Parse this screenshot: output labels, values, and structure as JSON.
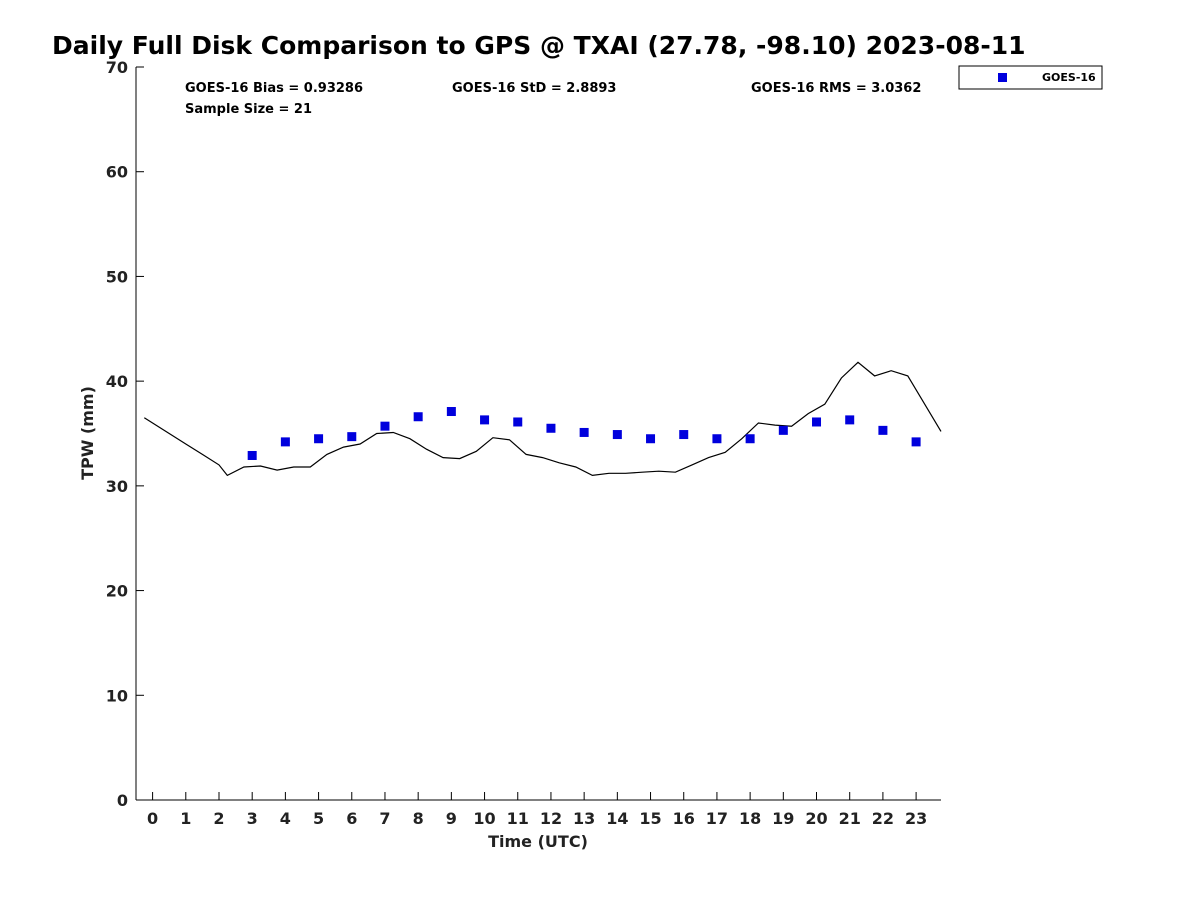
{
  "chart_data": {
    "type": "scatter",
    "title": "Daily Full Disk Comparison to GPS @ TXAI (27.78, -98.10) 2023-08-11",
    "xlabel": "Time (UTC)",
    "ylabel": "TPW (mm)",
    "xlim": [
      -0.5,
      23.75
    ],
    "ylim": [
      0,
      70
    ],
    "x_ticks": [
      "0",
      "1",
      "2",
      "3",
      "4",
      "5",
      "6",
      "7",
      "8",
      "9",
      "10",
      "11",
      "12",
      "13",
      "14",
      "15",
      "16",
      "17",
      "18",
      "19",
      "20",
      "21",
      "22",
      "23"
    ],
    "y_ticks": [
      "0",
      "10",
      "20",
      "30",
      "40",
      "50",
      "60",
      "70"
    ],
    "grid": false,
    "legend_position": "top-right",
    "stats": {
      "bias": "GOES-16 Bias = 0.93286",
      "std": "GOES-16 StD = 2.8893",
      "rms": "GOES-16 RMS = 3.0362",
      "sample": "Sample Size = 21"
    },
    "series": [
      {
        "name": "GOES-16",
        "kind": "scatter",
        "color": "#0000dd",
        "x": [
          3,
          4,
          5,
          6,
          7,
          8,
          9,
          10,
          11,
          12,
          13,
          14,
          15,
          16,
          17,
          18,
          19,
          20,
          21,
          22,
          23
        ],
        "y": [
          32.9,
          34.2,
          34.5,
          34.7,
          35.7,
          36.6,
          37.1,
          36.3,
          36.1,
          35.5,
          35.1,
          34.9,
          34.5,
          34.9,
          34.5,
          34.5,
          35.3,
          36.1,
          36.3,
          35.3,
          34.2
        ]
      },
      {
        "kind": "line",
        "color": "#000000",
        "x": [
          -0.25,
          0.5,
          1.0,
          1.5,
          2.0,
          2.25,
          2.75,
          3.25,
          3.75,
          4.25,
          4.75,
          5.25,
          5.75,
          6.25,
          6.75,
          7.25,
          7.75,
          8.25,
          8.75,
          9.25,
          9.75,
          10.25,
          10.75,
          11.25,
          11.75,
          12.25,
          12.75,
          13.25,
          13.75,
          14.25,
          14.75,
          15.25,
          15.75,
          16.25,
          16.75,
          17.25,
          17.75,
          18.25,
          18.75,
          19.25,
          19.75,
          20.25,
          20.75,
          21.25,
          21.75,
          22.25,
          22.75,
          23.75
        ],
        "y": [
          36.5,
          35.0,
          34.0,
          33.0,
          32.0,
          31.0,
          31.8,
          31.9,
          31.5,
          31.8,
          31.8,
          33.0,
          33.7,
          34.0,
          35.0,
          35.1,
          34.5,
          33.5,
          32.7,
          32.6,
          33.3,
          34.6,
          34.4,
          33.0,
          32.7,
          32.2,
          31.8,
          31.0,
          31.2,
          31.2,
          31.3,
          31.4,
          31.3,
          32.0,
          32.7,
          33.2,
          34.5,
          36.0,
          35.8,
          35.7,
          36.9,
          37.8,
          40.3,
          41.8,
          40.5,
          41.0,
          40.5,
          35.2
        ]
      }
    ]
  }
}
